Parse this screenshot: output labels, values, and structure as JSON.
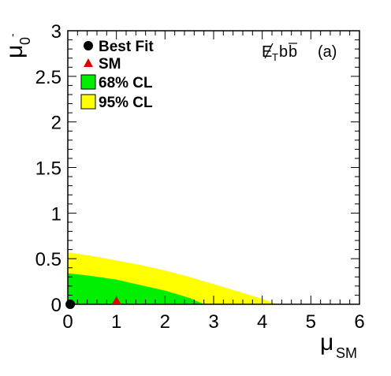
{
  "chart_data": {
    "type": "area",
    "xlabel": "μ",
    "xlabel_sub": "SM",
    "ylabel": "μ",
    "ylabel_sub": "0",
    "ylabel_sup": "-",
    "xlim": [
      0,
      6
    ],
    "ylim": [
      0,
      3
    ],
    "x_ticks": [
      0,
      1,
      2,
      3,
      4,
      5,
      6
    ],
    "y_ticks": [
      0,
      0.5,
      1,
      1.5,
      2,
      2.5,
      3
    ],
    "x_tick_labels": [
      "0",
      "1",
      "2",
      "3",
      "4",
      "5",
      "6"
    ],
    "y_tick_labels": [
      "0",
      "0.5",
      "1",
      "1.5",
      "2",
      "2.5",
      "3"
    ],
    "annotation_channel": "E̸Tbb̄",
    "annotation_channel_parts": {
      "etmiss": "E",
      "etmiss_sub": "T",
      "b1": "b",
      "b2": "b"
    },
    "annotation_panel": "(a)",
    "legend": {
      "placement": "top-left",
      "entries": [
        {
          "label": "Best Fit",
          "marker": "circle",
          "color": "#000000"
        },
        {
          "label": "SM",
          "marker": "triangle",
          "color": "#e00000"
        },
        {
          "label": "68% CL",
          "marker": "box",
          "color": "#00ee00"
        },
        {
          "label": "95% CL",
          "marker": "box",
          "color": "#ffff00"
        }
      ]
    },
    "best_fit": {
      "x": 0.05,
      "y": 0.0,
      "color": "#000000"
    },
    "sm_point": {
      "x": 1.0,
      "y": 0.0,
      "color": "#e00000"
    },
    "contour_95": {
      "name": "95% CL",
      "color": "#ffff00",
      "x": [
        0,
        0.5,
        1.0,
        1.5,
        2.0,
        2.5,
        3.0,
        3.5,
        4.0,
        4.3
      ],
      "y": [
        0.57,
        0.53,
        0.48,
        0.43,
        0.37,
        0.3,
        0.22,
        0.14,
        0.06,
        0.0
      ]
    },
    "contour_68": {
      "name": "68% CL",
      "color": "#00ee00",
      "x": [
        0,
        0.5,
        1.0,
        1.5,
        2.0,
        2.5,
        2.8
      ],
      "y": [
        0.34,
        0.31,
        0.27,
        0.21,
        0.15,
        0.07,
        0.0
      ]
    },
    "grid": false
  }
}
